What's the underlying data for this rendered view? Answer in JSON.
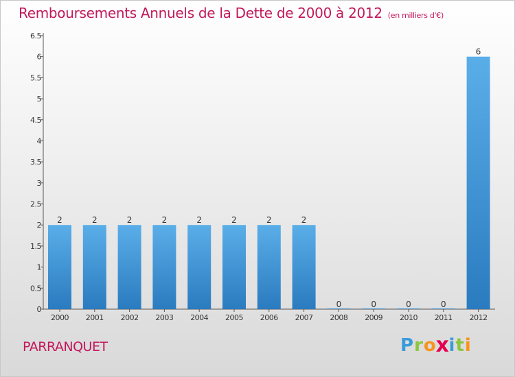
{
  "header": {
    "title": "Remboursements Annuels de la Dette de 2000 à 2012",
    "unit": "(en milliers d'€)"
  },
  "footer": {
    "commune": "PARRANQUET",
    "logo_letters": [
      "P",
      "r",
      "o",
      "x",
      "i",
      "t",
      "i"
    ],
    "logo_colors": [
      "#3a9bd9",
      "#8cc63f",
      "#f7941d",
      "#e5004f",
      "#3a9bd9",
      "#8cc63f",
      "#f7941d"
    ]
  },
  "chart_data": {
    "type": "bar",
    "categories": [
      "2000",
      "2001",
      "2002",
      "2003",
      "2004",
      "2005",
      "2006",
      "2007",
      "2008",
      "2009",
      "2010",
      "2011",
      "2012"
    ],
    "values": [
      2,
      2,
      2,
      2,
      2,
      2,
      2,
      2,
      0,
      0,
      0,
      0,
      6
    ],
    "data_labels": [
      "2",
      "2",
      "2",
      "2",
      "2",
      "2",
      "2",
      "2",
      "0",
      "0",
      "0",
      "0",
      "6"
    ],
    "yticks": [
      "0",
      "0.5",
      "1",
      "1.5",
      "2",
      "2.5",
      "3",
      "3.5",
      "4",
      "4.5",
      "5",
      "5.5",
      "6",
      "6.5"
    ],
    "ylim": [
      0,
      6.5
    ],
    "title": "Remboursements Annuels de la Dette de 2000 à 2012",
    "xlabel": "",
    "ylabel": "",
    "grid": false,
    "bar_color_top": "#5aaee8",
    "bar_color_bottom": "#2a7bbf"
  }
}
